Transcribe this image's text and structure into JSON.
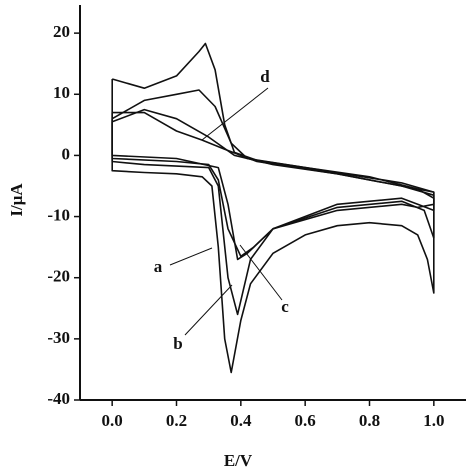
{
  "chart_data": {
    "type": "line",
    "x_label": "E/V",
    "y_label": "I/μA",
    "xlim": [
      -0.1,
      1.1
    ],
    "ylim": [
      -40,
      24.6
    ],
    "xticks": [
      {
        "value": 0,
        "label": "0.0"
      },
      0.2,
      0.4,
      0.6,
      0.8,
      {
        "value": 1,
        "label": "1.0"
      }
    ],
    "yticks": [
      -40,
      -30,
      -20,
      -10,
      0,
      10,
      20
    ],
    "series": [
      {
        "name": "a",
        "color": "#111111",
        "x": [
          0.0,
          0.1,
          0.2,
          0.3,
          0.38,
          0.5,
          0.7,
          0.9,
          1.0,
          1.0,
          0.95,
          0.9,
          0.7,
          0.5,
          0.44,
          0.4,
          0.36,
          0.33,
          0.3,
          0.2,
          0.0,
          0.0
        ],
        "values": [
          5.5,
          7.5,
          6,
          3,
          0,
          -1.5,
          -3,
          -5,
          -6,
          -8,
          -8.5,
          -8,
          -9,
          -12,
          -15,
          -16.5,
          -12,
          -4,
          -1.5,
          -1,
          -0.5,
          5.5
        ]
      },
      {
        "name": "b",
        "color": "#111111",
        "x": [
          0.0,
          0.1,
          0.2,
          0.27,
          0.29,
          0.32,
          0.35,
          0.38,
          0.45,
          0.6,
          0.8,
          0.95,
          1.0,
          1.0,
          0.98,
          0.95,
          0.9,
          0.8,
          0.7,
          0.6,
          0.5,
          0.43,
          0.4,
          0.37,
          0.35,
          0.33,
          0.31,
          0.28,
          0.2,
          0.1,
          0.0,
          0.0
        ],
        "values": [
          12.5,
          11,
          13,
          17,
          18.3,
          14,
          5,
          0.5,
          -0.8,
          -2,
          -3.5,
          -5.5,
          -7,
          -22.5,
          -17,
          -13,
          -11.5,
          -11,
          -11.5,
          -13,
          -16,
          -21,
          -27,
          -35.5,
          -30,
          -15,
          -5,
          -3.5,
          -3,
          -2.8,
          -2.5,
          12.5
        ]
      },
      {
        "name": "c",
        "color": "#111111",
        "x": [
          0.0,
          0.1,
          0.2,
          0.27,
          0.32,
          0.37,
          0.42,
          0.6,
          0.9,
          1.0,
          1.0,
          0.95,
          0.9,
          0.7,
          0.5,
          0.43,
          0.39,
          0.36,
          0.33,
          0.3,
          0.1,
          0.0,
          0.0
        ],
        "values": [
          6,
          9,
          10,
          10.7,
          8,
          2,
          -0.5,
          -2,
          -4.5,
          -6,
          -9,
          -8,
          -7,
          -8,
          -12,
          -17,
          -26,
          -20,
          -5,
          -2,
          -1.5,
          -1,
          6
        ]
      },
      {
        "name": "d",
        "color": "#111111",
        "x": [
          0.0,
          0.1,
          0.2,
          0.28,
          0.35,
          0.45,
          0.7,
          0.9,
          1.0,
          1.0,
          0.97,
          0.9,
          0.7,
          0.5,
          0.42,
          0.39,
          0.36,
          0.33,
          0.2,
          0.0,
          0.0
        ],
        "values": [
          7,
          7,
          4,
          2.5,
          1,
          -1,
          -3,
          -5,
          -6.5,
          -13.5,
          -9,
          -7.5,
          -8.5,
          -12,
          -16,
          -17,
          -8,
          -2,
          -0.5,
          0,
          7
        ]
      }
    ]
  }
}
